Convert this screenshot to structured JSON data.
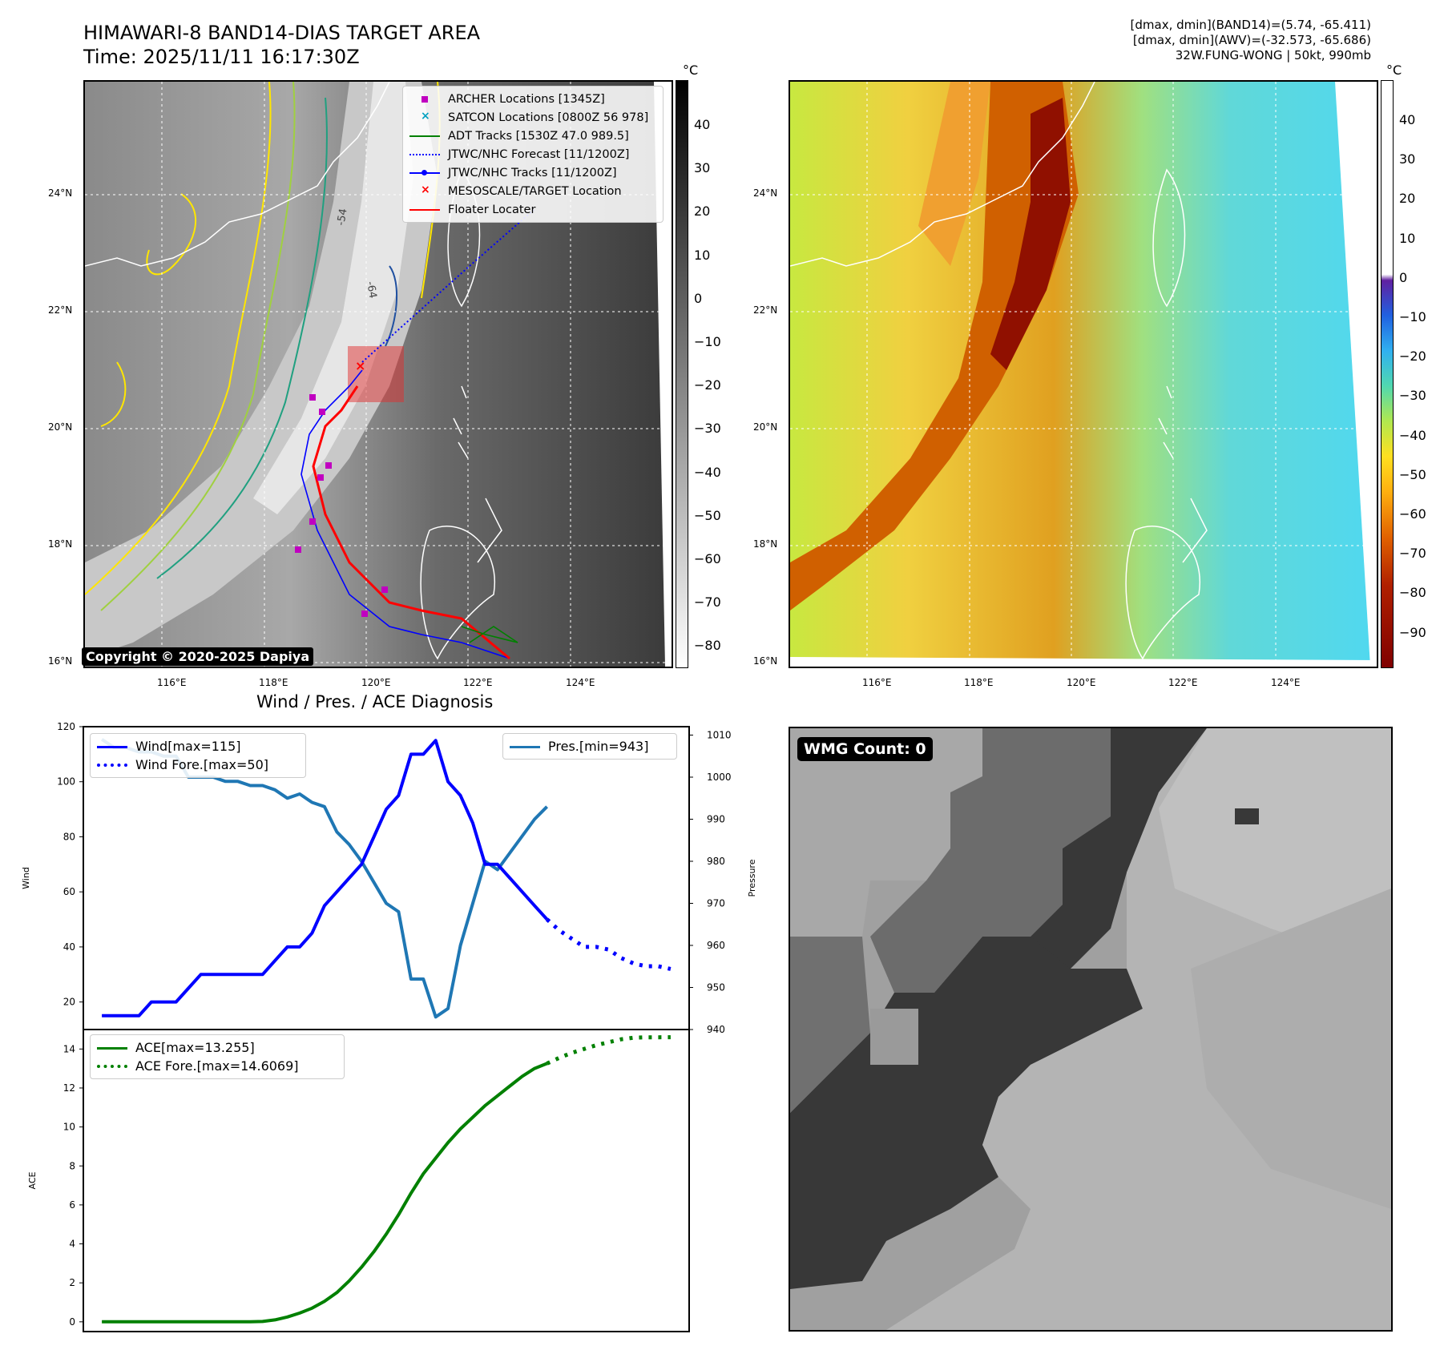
{
  "header": {
    "title_line1": "HIMAWARI-8 BAND14-DIAS TARGET AREA",
    "title_line2": "Time: 2025/11/11 16:17:30Z",
    "stats_line1": "[dmax, dmin](BAND14)=(5.74, -65.411)",
    "stats_line2": "[dmax, dmin](AWV)=(-32.573, -65.686)",
    "stats_line3": "32W.FUNG-WONG | 50kt, 990mb"
  },
  "map": {
    "lat_labels": [
      "24°N",
      "22°N",
      "20°N",
      "18°N",
      "16°N"
    ],
    "lon_labels": [
      "116°E",
      "118°E",
      "120°E",
      "122°E",
      "124°E"
    ],
    "copyright": "Copyright © 2020-2025 Dapiya",
    "contour_labels": [
      "-54",
      "-64"
    ],
    "legend": [
      {
        "label": "ARCHER Locations [1345Z]",
        "color": "#c000c0",
        "marker": "square"
      },
      {
        "label": "SATCON Locations [0800Z 56 978]",
        "color": "#00a0c0",
        "marker": "x"
      },
      {
        "label": "ADT Tracks [1530Z 47.0 989.5]",
        "color": "#008000",
        "marker": "line"
      },
      {
        "label": "JTWC/NHC Forecast [11/1200Z]",
        "color": "#0000ff",
        "marker": "dotted"
      },
      {
        "label": "JTWC/NHC Tracks [11/1200Z]",
        "color": "#0000ff",
        "marker": "line-dot"
      },
      {
        "label": "MESOSCALE/TARGET Location",
        "color": "#ff0000",
        "marker": "x"
      },
      {
        "label": "Floater Locater",
        "color": "#ff0000",
        "marker": "line"
      }
    ],
    "colorbar_left": {
      "unit": "°C",
      "ticks": [
        "40",
        "30",
        "20",
        "10",
        "0",
        "−10",
        "−20",
        "−30",
        "−40",
        "−50",
        "−60",
        "−70",
        "−80"
      ]
    },
    "colorbar_right": {
      "unit": "°C",
      "ticks": [
        "40",
        "30",
        "20",
        "10",
        "0",
        "−10",
        "−20",
        "−30",
        "−40",
        "−50",
        "−60",
        "−70",
        "−80",
        "−90"
      ]
    }
  },
  "wmg": {
    "label": "WMG Count: 0"
  },
  "chart_data": [
    {
      "type": "line",
      "title": "Wind / Pres. / ACE Diagnosis",
      "ylabel": "Wind",
      "ylabel_right": "Pressure",
      "ylim": [
        10,
        120
      ],
      "ylim_right": [
        940,
        1012
      ],
      "y_ticks": [
        "120",
        "100",
        "80",
        "60",
        "40",
        "20"
      ],
      "y_ticks_right": [
        "1010",
        "1000",
        "990",
        "980",
        "970",
        "960",
        "950",
        "940"
      ],
      "series": [
        {
          "name": "Wind[max=115]",
          "color": "#0000ff",
          "style": "solid",
          "x": [
            0,
            1,
            2,
            3,
            4,
            5,
            6,
            7,
            8,
            9,
            10,
            11,
            12,
            13,
            14,
            15,
            16,
            17,
            18,
            19,
            20,
            21,
            22,
            23,
            24,
            25,
            26,
            27,
            28,
            29,
            30,
            31,
            32,
            33,
            34,
            35,
            36,
            37,
            38,
            39,
            40,
            41,
            42
          ],
          "values": [
            15,
            15,
            15,
            15,
            20,
            20,
            20,
            25,
            30,
            30,
            30,
            30,
            30,
            30,
            35,
            40,
            40,
            45,
            55,
            60,
            65,
            70,
            80,
            90,
            95,
            110,
            110,
            115,
            100,
            95,
            85,
            70,
            70,
            65,
            60,
            55,
            50,
            null,
            null,
            null,
            null,
            null,
            null
          ]
        },
        {
          "name": "Wind Fore.[max=50]",
          "color": "#0000ff",
          "style": "dotted",
          "x": [
            36,
            37,
            38,
            39,
            40,
            41,
            42,
            43,
            44,
            45,
            46
          ],
          "values": [
            50,
            46,
            43,
            40,
            40,
            39,
            36,
            34,
            33,
            33,
            32
          ]
        },
        {
          "name": "Pres.[min=943]",
          "color": "#1f77b4",
          "style": "solid",
          "axis": "right",
          "x": [
            0,
            1,
            2,
            3,
            4,
            5,
            6,
            7,
            8,
            9,
            10,
            11,
            12,
            13,
            14,
            15,
            16,
            17,
            18,
            19,
            20,
            21,
            22,
            23,
            24,
            25,
            26,
            27,
            28,
            29,
            30,
            31,
            32,
            33,
            34,
            35,
            36
          ],
          "values": [
            1009,
            1007,
            1007,
            1006,
            1006,
            1005,
            1005,
            1000,
            1000,
            1000,
            999,
            999,
            998,
            998,
            997,
            995,
            996,
            994,
            993,
            987,
            984,
            980,
            975,
            970,
            968,
            952,
            952,
            943,
            945,
            960,
            970,
            980,
            978,
            982,
            986,
            990,
            993
          ]
        }
      ]
    },
    {
      "type": "line",
      "ylabel": "ACE",
      "ylim": [
        -0.5,
        15
      ],
      "y_ticks": [
        "14",
        "12",
        "10",
        "8",
        "6",
        "4",
        "2",
        "0"
      ],
      "series": [
        {
          "name": "ACE[max=13.255]",
          "color": "#008000",
          "style": "solid",
          "x": [
            0,
            2,
            4,
            6,
            8,
            10,
            12,
            13,
            14,
            15,
            16,
            17,
            18,
            19,
            20,
            21,
            22,
            23,
            24,
            25,
            26,
            27,
            28,
            29,
            30,
            31,
            32,
            33,
            34,
            35,
            36
          ],
          "values": [
            0,
            0,
            0,
            0,
            0,
            0,
            0,
            0.02,
            0.1,
            0.25,
            0.45,
            0.7,
            1.05,
            1.5,
            2.1,
            2.8,
            3.6,
            4.5,
            5.5,
            6.6,
            7.6,
            8.4,
            9.2,
            9.9,
            10.5,
            11.1,
            11.6,
            12.1,
            12.6,
            13.0,
            13.255
          ]
        },
        {
          "name": "ACE Fore.[max=14.6069]",
          "color": "#008000",
          "style": "dotted",
          "x": [
            36,
            37,
            38,
            39,
            40,
            41,
            42,
            43,
            44,
            45,
            46
          ],
          "values": [
            13.255,
            13.55,
            13.8,
            14.0,
            14.2,
            14.35,
            14.5,
            14.58,
            14.6,
            14.6,
            14.6069
          ]
        }
      ]
    }
  ]
}
